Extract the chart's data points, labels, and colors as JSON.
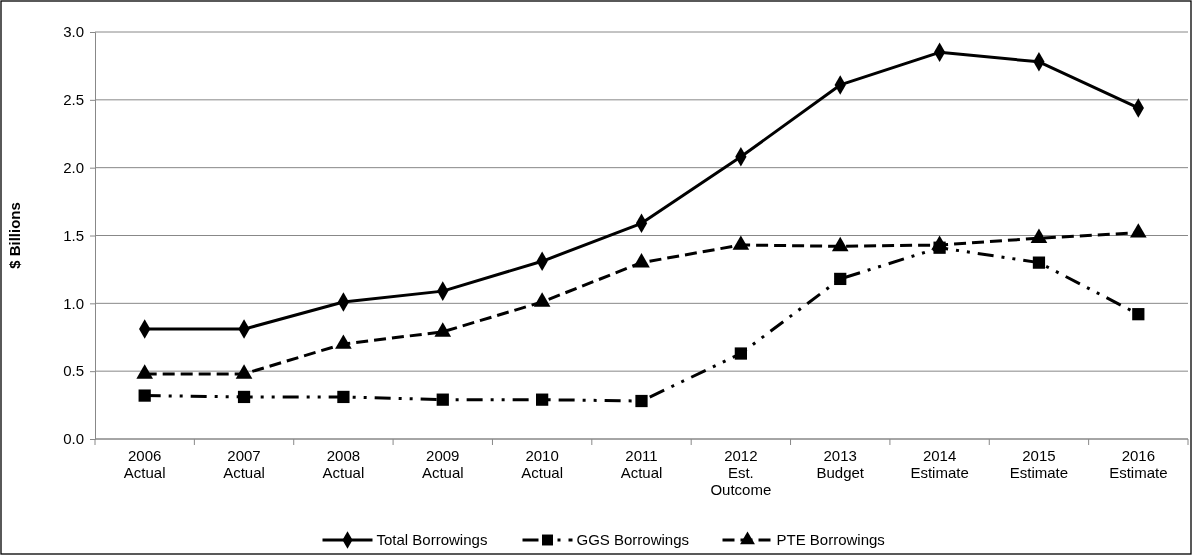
{
  "chart_data": {
    "type": "line",
    "ylabel": "$ Billions",
    "categories": [
      "2006\nActual",
      "2007\nActual",
      "2008\nActual",
      "2009\nActual",
      "2010\nActual",
      "2011\nActual",
      "2012\nEst.\nOutcome",
      "2013\nBudget",
      "2014\nEstimate",
      "2015\nEstimate",
      "2016\nEstimate"
    ],
    "series": [
      {
        "name": "Total Borrowings",
        "color": "#000000",
        "marker": "diamond",
        "line_style": "solid",
        "values": [
          0.81,
          0.81,
          1.01,
          1.09,
          1.31,
          1.59,
          2.08,
          2.61,
          2.85,
          2.78,
          2.44
        ]
      },
      {
        "name": "GGS Borrowings",
        "color": "#000000",
        "marker": "square",
        "line_style": "dashdotdot",
        "values": [
          0.32,
          0.31,
          0.31,
          0.29,
          0.29,
          0.28,
          0.63,
          1.18,
          1.41,
          1.3,
          0.92
        ]
      },
      {
        "name": "PTE Borrowings",
        "color": "#000000",
        "marker": "triangle",
        "line_style": "dashed",
        "values": [
          0.48,
          0.48,
          0.7,
          0.79,
          1.01,
          1.3,
          1.43,
          1.42,
          1.43,
          1.48,
          1.52
        ]
      }
    ],
    "ylim": [
      0,
      3
    ],
    "yticks": [
      {
        "value": 0,
        "label": "0.0"
      },
      {
        "value": 0.5,
        "label": "0.5"
      },
      {
        "value": 1,
        "label": "1.0"
      },
      {
        "value": 1.5,
        "label": "1.5"
      },
      {
        "value": 2,
        "label": "2.0"
      },
      {
        "value": 2.5,
        "label": "2.5"
      },
      {
        "value": 3,
        "label": "3.0"
      }
    ],
    "grid": "y",
    "legend": "bottom"
  }
}
